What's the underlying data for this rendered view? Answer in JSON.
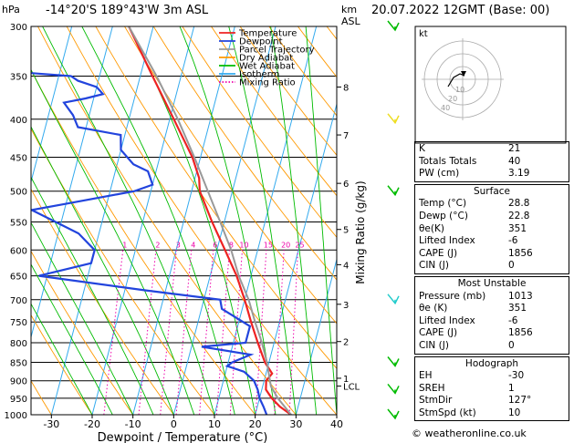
{
  "header": {
    "location": "-14°20'S  189°43'W  3m  ASL",
    "datetime": "20.07.2022  12GMT  (Base: 00)",
    "pressure_unit": "hPa",
    "height_unit": "km",
    "height_unit2": "ASL"
  },
  "chart_data": {
    "type": "line",
    "title": "",
    "xlabel": "Dewpoint / Temperature (°C)",
    "ylabel": "hPa",
    "right_axis_label": "Mixing Ratio (g/kg)",
    "xlim": [
      -35,
      40
    ],
    "ylim": [
      1000,
      300
    ],
    "y_scale": "log (skew-T)",
    "x_ticks": [
      -30,
      -20,
      -10,
      0,
      10,
      20,
      30,
      40
    ],
    "pressure_levels": [
      300,
      350,
      400,
      450,
      500,
      550,
      600,
      650,
      700,
      750,
      800,
      850,
      900,
      950,
      1000
    ],
    "km_ticks": [
      {
        "label": "8",
        "p": 362
      },
      {
        "label": "7",
        "p": 420
      },
      {
        "label": "6",
        "p": 488
      },
      {
        "label": "5",
        "p": 563
      },
      {
        "label": "4",
        "p": 628
      },
      {
        "label": "3",
        "p": 710
      },
      {
        "label": "2",
        "p": 797
      },
      {
        "label": "1",
        "p": 893
      },
      {
        "label": "LCL",
        "p": 915
      }
    ],
    "mixing_ratio_labels": [
      "1",
      "2",
      "3",
      "4",
      "6",
      "8",
      "10",
      "15",
      "20",
      "25"
    ],
    "legend": [
      {
        "name": "Temperature",
        "color": "#ee2222",
        "dash": "solid"
      },
      {
        "name": "Dewpoint",
        "color": "#2244dd",
        "dash": "solid"
      },
      {
        "name": "Parcel Trajectory",
        "color": "#999999",
        "dash": "solid"
      },
      {
        "name": "Dry Adiabat",
        "color": "#ff9900",
        "dash": "solid"
      },
      {
        "name": "Wet Adiabat",
        "color": "#00bb00",
        "dash": "solid"
      },
      {
        "name": "Isotherm",
        "color": "#33aaee",
        "dash": "solid"
      },
      {
        "name": "Mixing Ratio",
        "color": "#ee00aa",
        "dash": "dotted"
      }
    ],
    "series": [
      {
        "name": "Temperature",
        "color": "#ee2222",
        "points": [
          [
            1000,
            28.8
          ],
          [
            975,
            25.5
          ],
          [
            950,
            23
          ],
          [
            925,
            21
          ],
          [
            900,
            20.5
          ],
          [
            880,
            21.5
          ],
          [
            850,
            19
          ],
          [
            800,
            16
          ],
          [
            750,
            13
          ],
          [
            700,
            10
          ],
          [
            650,
            6.5
          ],
          [
            600,
            2
          ],
          [
            550,
            -3
          ],
          [
            500,
            -8
          ],
          [
            480,
            -9
          ],
          [
            450,
            -12
          ],
          [
            400,
            -19
          ],
          [
            350,
            -27
          ],
          [
            300,
            -36
          ]
        ]
      },
      {
        "name": "Dewpoint",
        "color": "#2244dd",
        "points": [
          [
            1000,
            22.8
          ],
          [
            975,
            21.5
          ],
          [
            950,
            20
          ],
          [
            925,
            19
          ],
          [
            900,
            17.5
          ],
          [
            875,
            14.5
          ],
          [
            860,
            10
          ],
          [
            850,
            11
          ],
          [
            830,
            15
          ],
          [
            810,
            2.5
          ],
          [
            800,
            13
          ],
          [
            760,
            13
          ],
          [
            720,
            5
          ],
          [
            700,
            4
          ],
          [
            680,
            -15
          ],
          [
            650,
            -42
          ],
          [
            625,
            -30
          ],
          [
            600,
            -30
          ],
          [
            570,
            -35
          ],
          [
            530,
            -48
          ],
          [
            520,
            -40
          ],
          [
            500,
            -24
          ],
          [
            490,
            -20
          ],
          [
            470,
            -22
          ],
          [
            460,
            -26
          ],
          [
            440,
            -30
          ],
          [
            420,
            -31
          ],
          [
            410,
            -42
          ],
          [
            395,
            -44
          ],
          [
            380,
            -47
          ],
          [
            375,
            -42
          ],
          [
            370,
            -38
          ],
          [
            362,
            -40
          ],
          [
            355,
            -45
          ],
          [
            350,
            -47
          ],
          [
            345,
            -62
          ],
          [
            335,
            -70
          ],
          [
            310,
            -76
          ],
          [
            300,
            -78
          ]
        ]
      },
      {
        "name": "Parcel Trajectory",
        "color": "#999999",
        "points": [
          [
            1000,
            28.8
          ],
          [
            950,
            24.5
          ],
          [
            915,
            22
          ],
          [
            850,
            19.5
          ],
          [
            800,
            17
          ],
          [
            750,
            14
          ],
          [
            700,
            11
          ],
          [
            650,
            7
          ],
          [
            600,
            3.5
          ],
          [
            550,
            -1
          ],
          [
            500,
            -6
          ],
          [
            450,
            -11.5
          ],
          [
            400,
            -18
          ],
          [
            350,
            -26
          ],
          [
            300,
            -36
          ]
        ]
      }
    ],
    "wind_barbs": [
      {
        "p": 300,
        "color": "#00bb00"
      },
      {
        "p": 400,
        "color": "#eedd22"
      },
      {
        "p": 500,
        "color": "#00bb00"
      },
      {
        "p": 700,
        "color": "#22cccc"
      },
      {
        "p": 850,
        "color": "#00bb00"
      },
      {
        "p": 925,
        "color": "#00bb00"
      },
      {
        "p": 1000,
        "color": "#00bb00"
      }
    ]
  },
  "hodograph": {
    "unit": "kt",
    "ring_labels": [
      "10",
      "20",
      "40"
    ]
  },
  "indices": {
    "top": [
      {
        "label": "K",
        "value": "21"
      },
      {
        "label": "Totals Totals",
        "value": "40"
      },
      {
        "label": "PW (cm)",
        "value": "3.19"
      }
    ],
    "surface": {
      "title": "Surface",
      "rows": [
        {
          "label": "Temp (°C)",
          "value": "28.8"
        },
        {
          "label": "Dewp (°C)",
          "value": "22.8"
        },
        {
          "label": "θe(K)",
          "value": "351"
        },
        {
          "label": "Lifted Index",
          "value": "-6"
        },
        {
          "label": "CAPE (J)",
          "value": "1856"
        },
        {
          "label": "CIN (J)",
          "value": "0"
        }
      ]
    },
    "most_unstable": {
      "title": "Most Unstable",
      "rows": [
        {
          "label": "Pressure (mb)",
          "value": "1013"
        },
        {
          "label": "θe (K)",
          "value": "351"
        },
        {
          "label": "Lifted Index",
          "value": "-6"
        },
        {
          "label": "CAPE (J)",
          "value": "1856"
        },
        {
          "label": "CIN (J)",
          "value": "0"
        }
      ]
    },
    "hodograph_box": {
      "title": "Hodograph",
      "rows": [
        {
          "label": "EH",
          "value": "-30"
        },
        {
          "label": "SREH",
          "value": "1"
        },
        {
          "label": "StmDir",
          "value": "127°"
        },
        {
          "label": "StmSpd (kt)",
          "value": "10"
        }
      ]
    }
  },
  "footer": "© weatheronline.co.uk"
}
